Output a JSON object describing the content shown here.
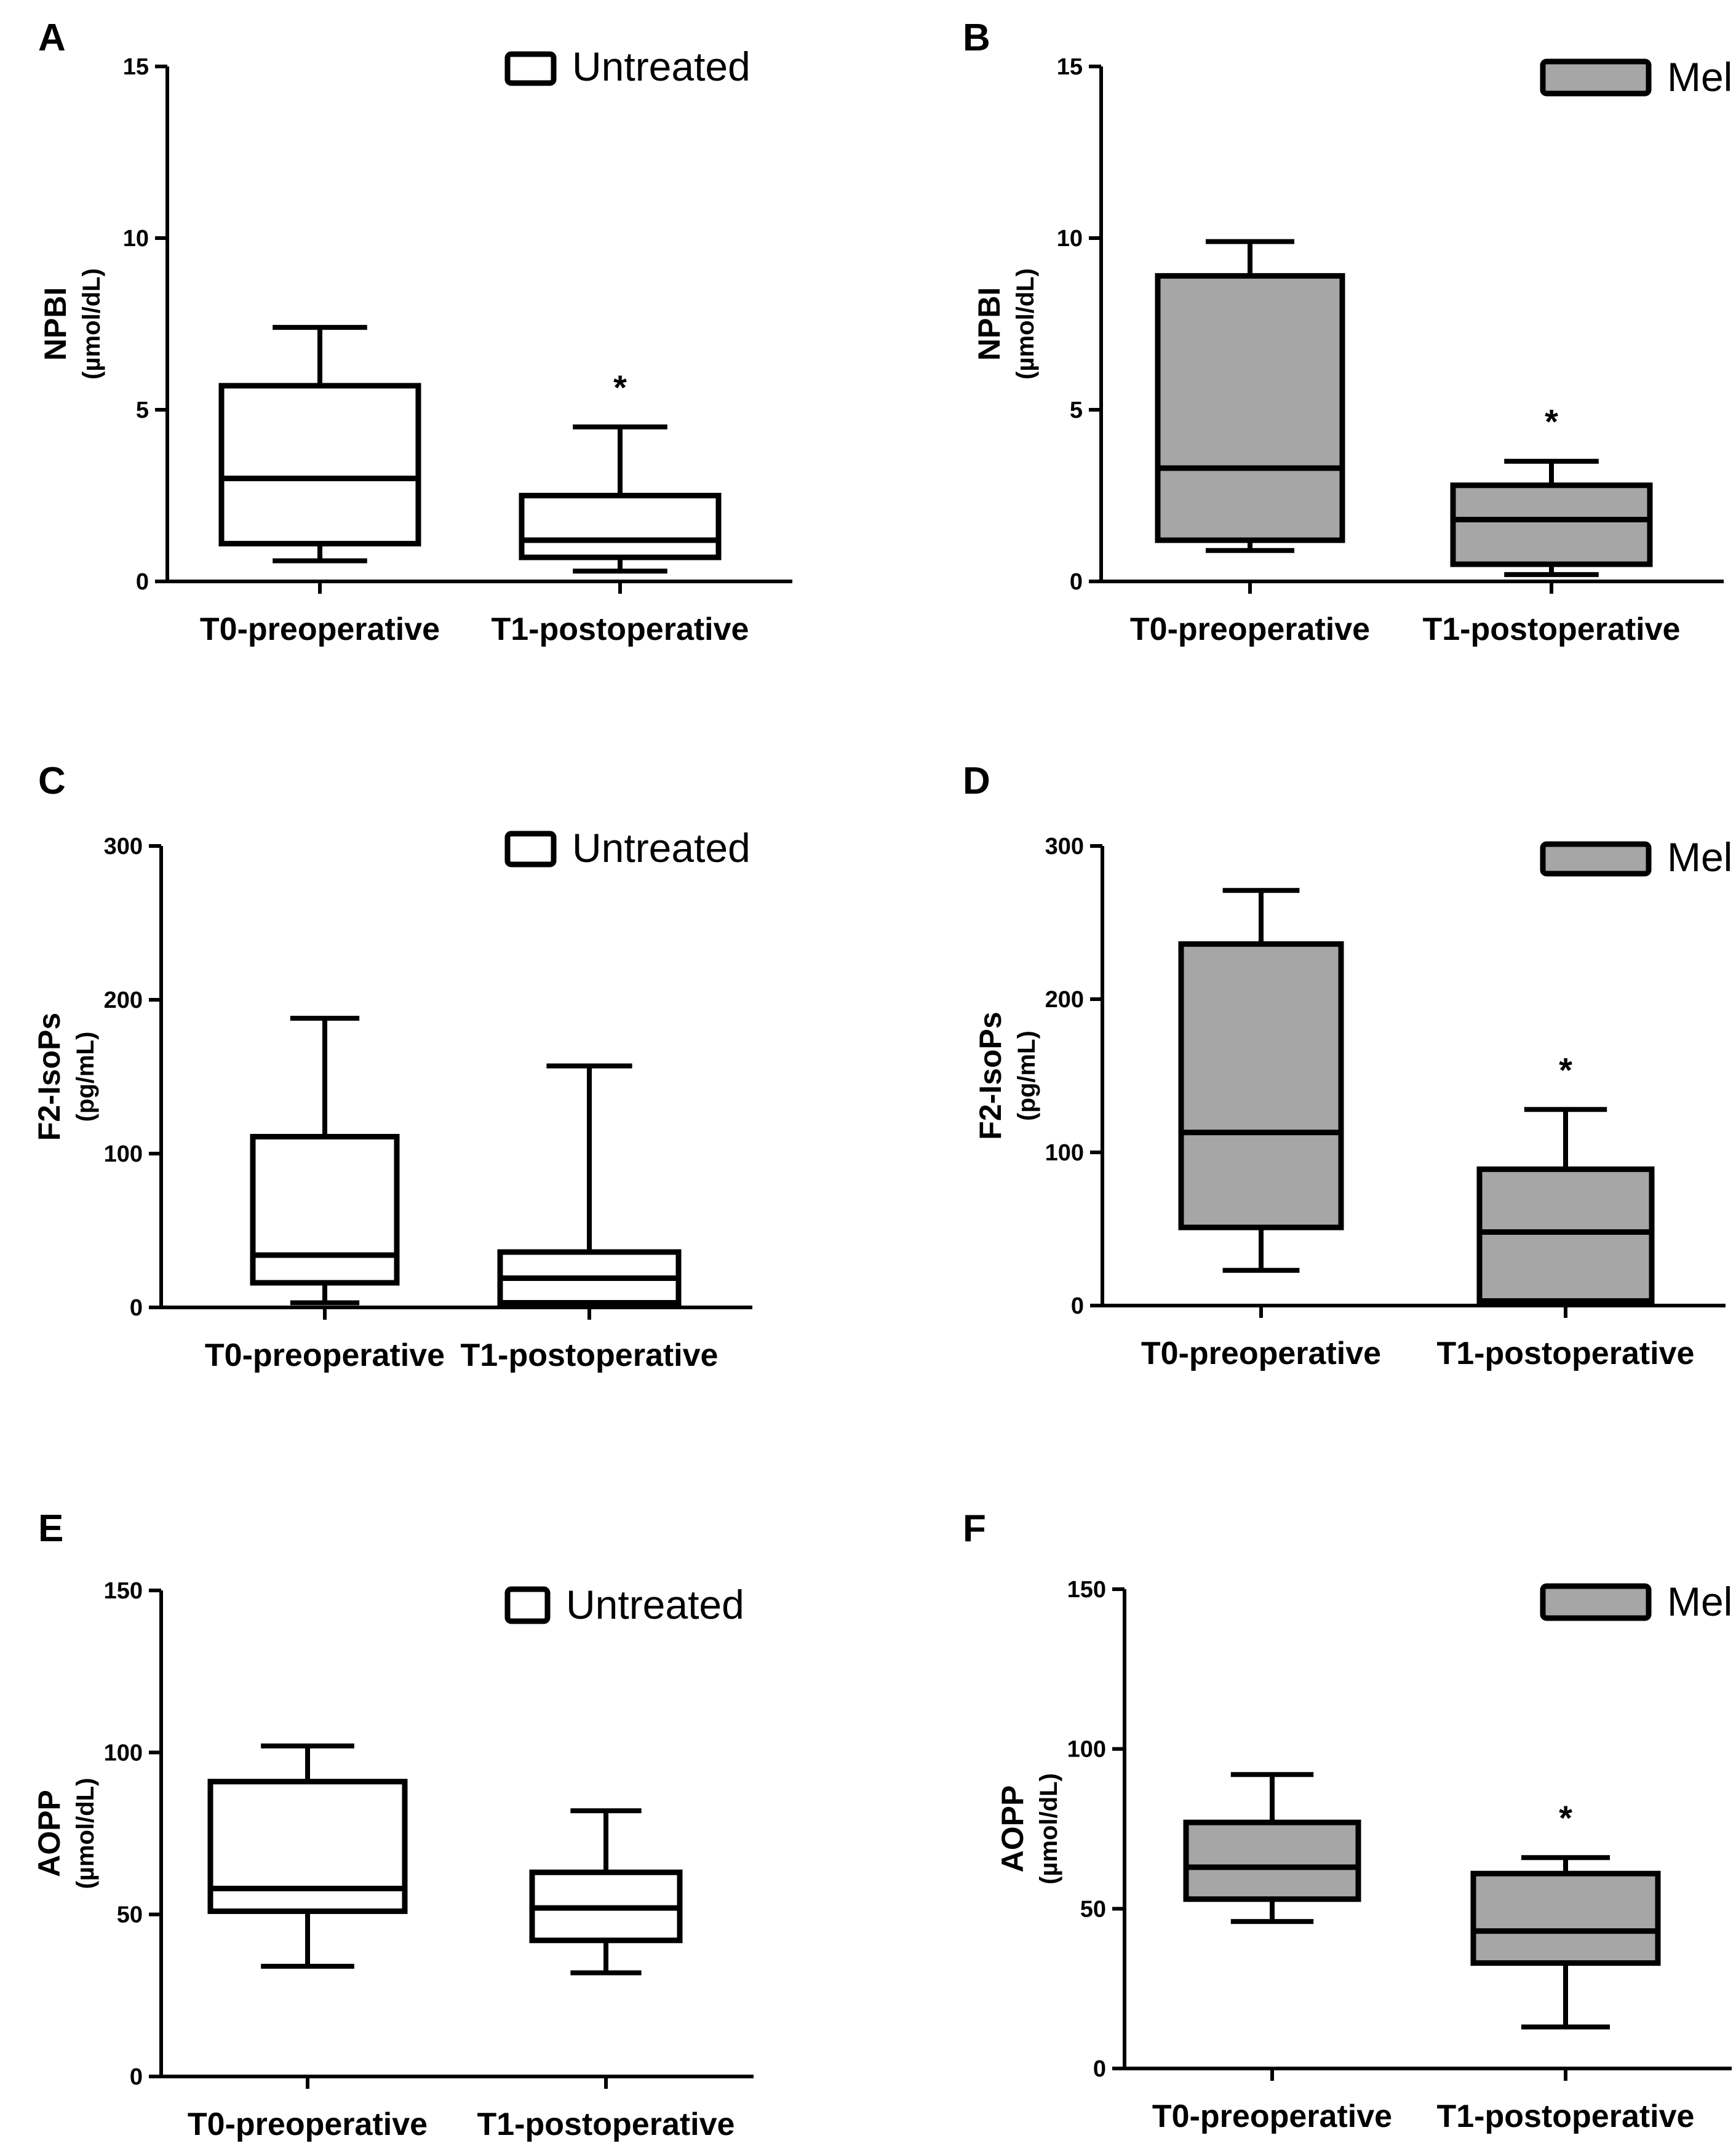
{
  "figure": {
    "box_colors": {
      "untreated": "#ffffff",
      "mel": "#a6a6a6",
      "stroke": "#000000"
    }
  },
  "chart_data": [
    {
      "type": "box",
      "panel": "A",
      "legend": "Untreated",
      "legend_fill": "untreated",
      "ylabel": "NPBI",
      "ylabel_unit": "(µmol/dL)",
      "ylim": [
        0,
        15
      ],
      "yticks": [
        "0",
        "5",
        "10",
        "15"
      ],
      "categories": [
        "T0-preoperative",
        "T1-postoperative"
      ],
      "boxes": [
        {
          "whisker_low": 0.6,
          "q1": 1.1,
          "median": 3.0,
          "q3": 5.7,
          "whisker_high": 7.4
        },
        {
          "whisker_low": 0.3,
          "q1": 0.7,
          "median": 1.2,
          "q3": 2.5,
          "whisker_high": 4.5
        }
      ],
      "significance": [
        "",
        "*"
      ]
    },
    {
      "type": "box",
      "panel": "B",
      "legend": "Mel",
      "legend_fill": "mel",
      "ylabel": "NPBI",
      "ylabel_unit": "(µmol/dL)",
      "ylim": [
        0,
        15
      ],
      "yticks": [
        "0",
        "5",
        "10",
        "15"
      ],
      "categories": [
        "T0-preoperative",
        "T1-postoperative"
      ],
      "boxes": [
        {
          "whisker_low": 0.9,
          "q1": 1.2,
          "median": 3.3,
          "q3": 8.9,
          "whisker_high": 9.9
        },
        {
          "whisker_low": 0.2,
          "q1": 0.5,
          "median": 1.8,
          "q3": 2.8,
          "whisker_high": 3.5
        }
      ],
      "significance": [
        "",
        "*"
      ]
    },
    {
      "type": "box",
      "panel": "C",
      "legend": "Untreated",
      "legend_fill": "untreated",
      "ylabel": "F2-IsoPs",
      "ylabel_unit": "(pg/mL)",
      "ylim": [
        0,
        300
      ],
      "yticks": [
        "0",
        "100",
        "200",
        "300"
      ],
      "categories": [
        "T0-preoperative",
        "T1-postoperative"
      ],
      "boxes": [
        {
          "whisker_low": 3,
          "q1": 16,
          "median": 34,
          "q3": 111,
          "whisker_high": 188
        },
        {
          "whisker_low": 1,
          "q1": 3,
          "median": 19,
          "q3": 36,
          "whisker_high": 157
        }
      ],
      "significance": [
        "",
        ""
      ]
    },
    {
      "type": "box",
      "panel": "D",
      "legend": "Mel",
      "legend_fill": "mel",
      "ylabel": "F2-IsoPs",
      "ylabel_unit": "(pg/mL)",
      "ylim": [
        0,
        300
      ],
      "yticks": [
        "0",
        "100",
        "200",
        "300"
      ],
      "categories": [
        "T0-preoperative",
        "T1-postoperative"
      ],
      "boxes": [
        {
          "whisker_low": 23,
          "q1": 51,
          "median": 113,
          "q3": 236,
          "whisker_high": 271
        },
        {
          "whisker_low": 3,
          "q1": 3,
          "median": 48,
          "q3": 89,
          "whisker_high": 128
        }
      ],
      "significance": [
        "",
        "*"
      ]
    },
    {
      "type": "box",
      "panel": "E",
      "legend": "Untreated",
      "legend_fill": "untreated",
      "ylabel": "AOPP",
      "ylabel_unit": "(µmol/dL)",
      "ylim": [
        0,
        150
      ],
      "yticks": [
        "0",
        "50",
        "100",
        "150"
      ],
      "categories": [
        "T0-preoperative",
        "T1-postoperative"
      ],
      "boxes": [
        {
          "whisker_low": 34,
          "q1": 51,
          "median": 58,
          "q3": 91,
          "whisker_high": 102
        },
        {
          "whisker_low": 32,
          "q1": 42,
          "median": 52,
          "q3": 63,
          "whisker_high": 82
        }
      ],
      "significance": [
        "",
        ""
      ]
    },
    {
      "type": "box",
      "panel": "F",
      "legend": "Mel",
      "legend_fill": "mel",
      "ylabel": "AOPP",
      "ylabel_unit": "(µmol/dL)",
      "ylim": [
        0,
        150
      ],
      "yticks": [
        "0",
        "50",
        "100",
        "150"
      ],
      "categories": [
        "T0-preoperative",
        "T1-postoperative"
      ],
      "boxes": [
        {
          "whisker_low": 46,
          "q1": 53,
          "median": 63,
          "q3": 77,
          "whisker_high": 92
        },
        {
          "whisker_low": 13,
          "q1": 33,
          "median": 43,
          "q3": 61,
          "whisker_high": 66
        }
      ],
      "significance": [
        "",
        "*"
      ]
    }
  ]
}
